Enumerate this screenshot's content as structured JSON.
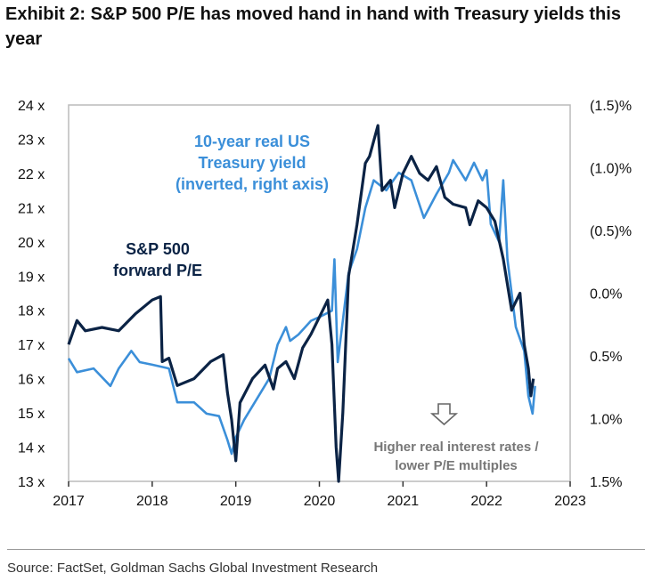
{
  "title": "Exhibit 2: S&P 500 P/E has moved hand in hand with Treasury yields this year",
  "source": "Source: FactSet, Goldman Sachs Global Investment Research",
  "chart_data": {
    "type": "line",
    "xlim": [
      2017,
      2023
    ],
    "x_ticks": [
      "2017",
      "2018",
      "2019",
      "2020",
      "2021",
      "2022",
      "2023"
    ],
    "left_axis": {
      "ylim": [
        13,
        24
      ],
      "ticks": [
        "13 x",
        "14 x",
        "15 x",
        "16 x",
        "17 x",
        "18 x",
        "19 x",
        "20 x",
        "21 x",
        "22 x",
        "23 x",
        "24 x"
      ]
    },
    "right_axis": {
      "ylim": [
        1.5,
        -1.5
      ],
      "inverted": true,
      "ticks": [
        "(1.5)%",
        "(1.0)%",
        "(0.5)%",
        "0.0%",
        "0.5%",
        "1.0%",
        "1.5%"
      ]
    },
    "grid": false,
    "series": [
      {
        "name": "S&P 500 forward P/E",
        "label_lines": [
          "S&P 500",
          "forward P/E"
        ],
        "axis": "left",
        "color": "#0b2345",
        "x": [
          2017.0,
          2017.1,
          2017.2,
          2017.4,
          2017.6,
          2017.8,
          2018.0,
          2018.1,
          2018.12,
          2018.2,
          2018.3,
          2018.5,
          2018.7,
          2018.85,
          2018.9,
          2018.95,
          2019.0,
          2019.05,
          2019.2,
          2019.35,
          2019.45,
          2019.5,
          2019.6,
          2019.7,
          2019.8,
          2019.9,
          2020.0,
          2020.1,
          2020.15,
          2020.2,
          2020.23,
          2020.28,
          2020.35,
          2020.45,
          2020.55,
          2020.6,
          2020.7,
          2020.75,
          2020.85,
          2020.9,
          2021.0,
          2021.1,
          2021.2,
          2021.3,
          2021.4,
          2021.5,
          2021.6,
          2021.75,
          2021.8,
          2021.9,
          2022.0,
          2022.1,
          2022.2,
          2022.3,
          2022.4,
          2022.45,
          2022.5,
          2022.53,
          2022.56
        ],
        "y": [
          17.0,
          17.7,
          17.4,
          17.5,
          17.4,
          17.9,
          18.3,
          18.4,
          16.5,
          16.6,
          15.8,
          16.0,
          16.5,
          16.7,
          15.6,
          14.8,
          13.6,
          15.3,
          16.0,
          16.4,
          15.7,
          16.3,
          16.5,
          16.0,
          16.9,
          17.3,
          17.8,
          18.3,
          17.0,
          14.0,
          13.0,
          15.0,
          19.0,
          20.5,
          22.3,
          22.5,
          23.4,
          21.5,
          21.8,
          21.0,
          22.0,
          22.5,
          22.0,
          21.8,
          22.2,
          21.3,
          21.1,
          21.0,
          20.5,
          21.2,
          21.0,
          20.6,
          19.5,
          18.0,
          18.5,
          17.0,
          16.3,
          15.5,
          16.0
        ]
      },
      {
        "name": "10-year real US Treasury yield (inverted, right axis)",
        "label_lines": [
          "10-year real US",
          "Treasury yield",
          "(inverted, right axis)"
        ],
        "axis": "right",
        "color": "#3b8fd9",
        "x": [
          2017.0,
          2017.1,
          2017.3,
          2017.5,
          2017.6,
          2017.75,
          2017.85,
          2018.0,
          2018.2,
          2018.3,
          2018.5,
          2018.65,
          2018.8,
          2018.9,
          2018.95,
          2019.0,
          2019.1,
          2019.3,
          2019.4,
          2019.5,
          2019.6,
          2019.65,
          2019.75,
          2019.9,
          2020.0,
          2020.15,
          2020.18,
          2020.22,
          2020.28,
          2020.35,
          2020.45,
          2020.55,
          2020.65,
          2020.8,
          2020.95,
          2021.1,
          2021.25,
          2021.4,
          2021.55,
          2021.6,
          2021.75,
          2021.85,
          2021.95,
          2022.0,
          2022.05,
          2022.15,
          2022.2,
          2022.25,
          2022.35,
          2022.45,
          2022.5,
          2022.55,
          2022.58
        ],
        "y": [
          0.52,
          0.63,
          0.6,
          0.74,
          0.6,
          0.46,
          0.55,
          0.57,
          0.6,
          0.87,
          0.87,
          0.96,
          0.98,
          1.17,
          1.28,
          1.15,
          1.01,
          0.79,
          0.68,
          0.41,
          0.27,
          0.38,
          0.33,
          0.22,
          0.19,
          0.14,
          -0.27,
          0.55,
          0.22,
          -0.16,
          -0.35,
          -0.68,
          -0.9,
          -0.82,
          -0.96,
          -0.9,
          -0.6,
          -0.79,
          -0.96,
          -1.06,
          -0.9,
          -1.04,
          -0.9,
          -0.98,
          -0.55,
          -0.41,
          -0.9,
          -0.27,
          0.27,
          0.46,
          0.82,
          0.96,
          0.74
        ]
      }
    ],
    "annotation": {
      "lines": [
        "Higher real interest rates /",
        "lower P/E multiples"
      ],
      "icon": "down-arrow-icon"
    }
  }
}
